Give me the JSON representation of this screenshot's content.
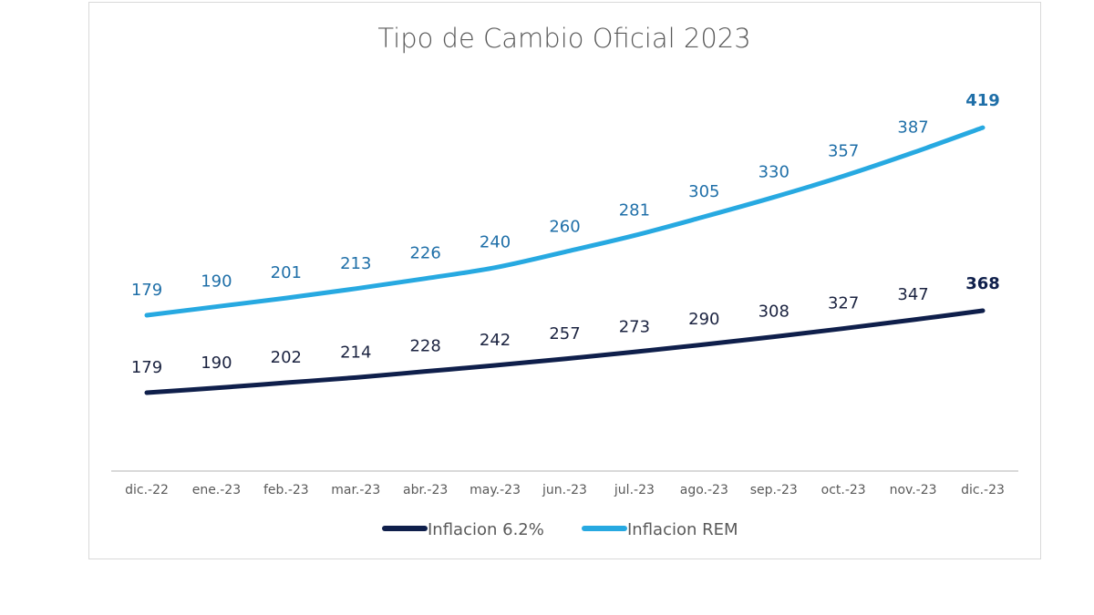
{
  "chart_data": {
    "type": "line",
    "title": "Tipo de Cambio Oficial 2023",
    "xlabel": "",
    "ylabel": "",
    "grid": false,
    "legend_position": "bottom",
    "categories": [
      "dic.-22",
      "ene.-23",
      "feb.-23",
      "mar.-23",
      "abr.-23",
      "may.-23",
      "jun.-23",
      "jul.-23",
      "ago.-23",
      "sep.-23",
      "oct.-23",
      "nov.-23",
      "dic.-23"
    ],
    "series": [
      {
        "name": "Inflacion 6.2%",
        "color": "#0f1f4b",
        "values": [
          179,
          190,
          202,
          214,
          228,
          242,
          257,
          273,
          290,
          308,
          327,
          347,
          368
        ]
      },
      {
        "name": "Inflacion REM",
        "color": "#27a9e1",
        "values": [
          179,
          190,
          201,
          213,
          226,
          240,
          260,
          281,
          305,
          330,
          357,
          387,
          419
        ]
      }
    ]
  }
}
